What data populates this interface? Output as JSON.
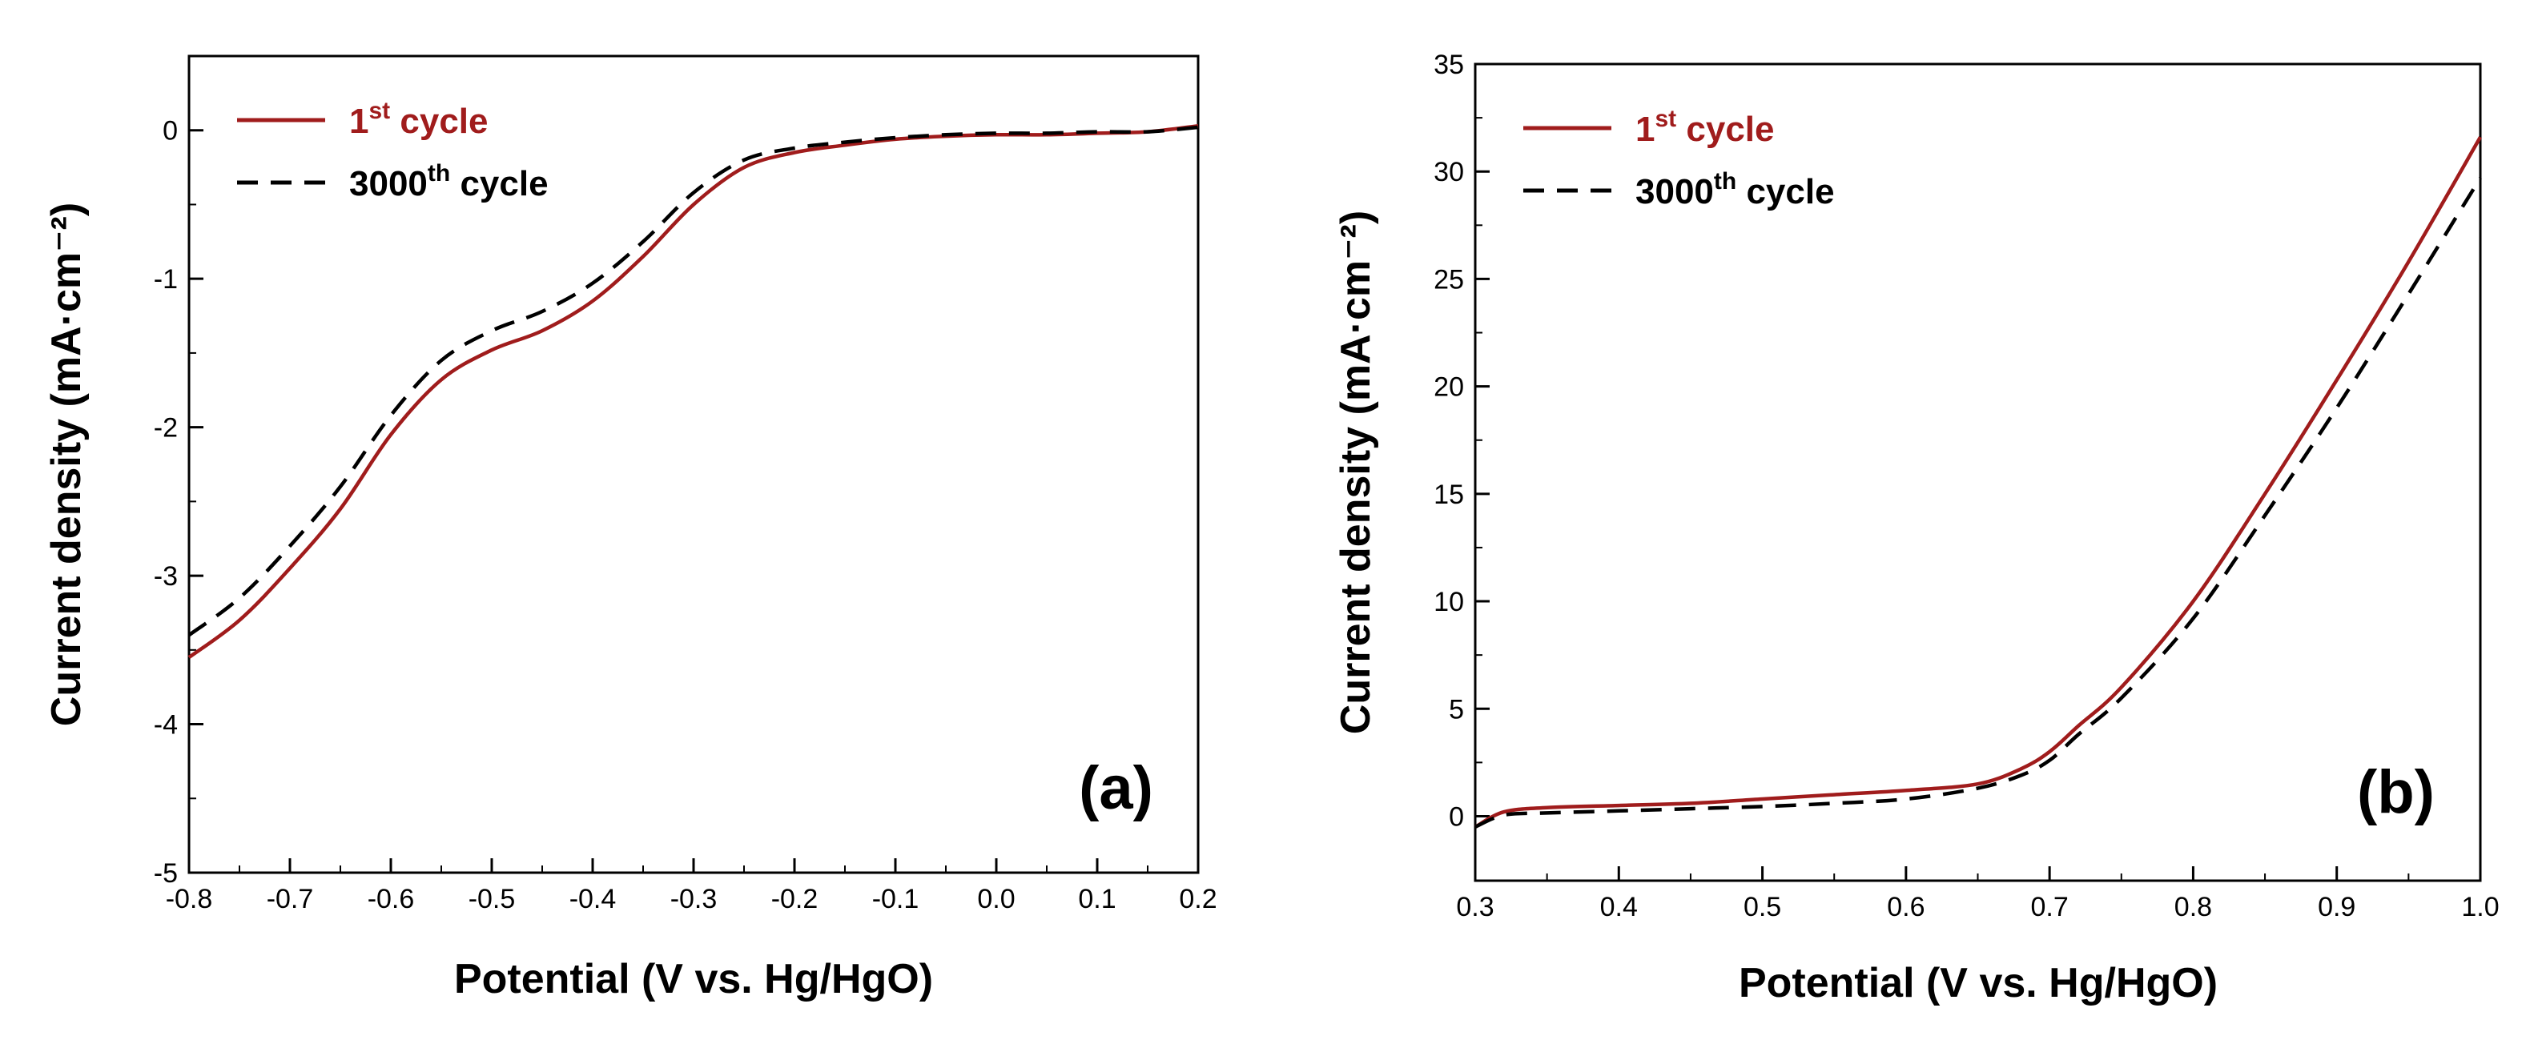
{
  "chart_data": [
    {
      "panel": "(a)",
      "type": "line",
      "xlabel": "Potential (V vs. Hg/HgO)",
      "ylabel": "Current density (mA·cm⁻²)",
      "xlim": [
        -0.8,
        0.2
      ],
      "ylim": [
        -5,
        0.5
      ],
      "xticks": [
        -0.8,
        -0.7,
        -0.6,
        -0.5,
        -0.4,
        -0.3,
        -0.2,
        -0.1,
        0.0,
        0.1,
        0.2
      ],
      "xtick_labels": [
        "-0.8",
        "-0.7",
        "-0.6",
        "-0.5",
        "-0.4",
        "-0.3",
        "-0.2",
        "-0.1",
        "0.0",
        "0.1",
        "0.2"
      ],
      "yticks": [
        0,
        -1,
        -2,
        -3,
        -4,
        -5
      ],
      "ytick_labels": [
        "0",
        "-1",
        "-2",
        "-3",
        "-4",
        "-5"
      ],
      "legend": {
        "position": "top-left"
      },
      "series": [
        {
          "name": "1st cycle",
          "label_main": "1",
          "label_sup": "st",
          "label_tail": " cycle",
          "color": "#a01c1c",
          "style": "solid",
          "x": [
            -0.8,
            -0.75,
            -0.7,
            -0.65,
            -0.6,
            -0.55,
            -0.5,
            -0.45,
            -0.4,
            -0.35,
            -0.3,
            -0.25,
            -0.2,
            -0.15,
            -0.1,
            -0.05,
            0.0,
            0.05,
            0.1,
            0.15,
            0.2
          ],
          "y": [
            -3.55,
            -3.3,
            -2.95,
            -2.55,
            -2.05,
            -1.68,
            -1.48,
            -1.35,
            -1.15,
            -0.85,
            -0.5,
            -0.25,
            -0.15,
            -0.1,
            -0.06,
            -0.04,
            -0.03,
            -0.03,
            -0.02,
            -0.01,
            0.03
          ]
        },
        {
          "name": "3000th cycle",
          "label_main": "3000",
          "label_sup": "th",
          "label_tail": " cycle",
          "color": "#000000",
          "style": "dashed",
          "x": [
            -0.8,
            -0.75,
            -0.7,
            -0.65,
            -0.6,
            -0.55,
            -0.5,
            -0.45,
            -0.4,
            -0.35,
            -0.3,
            -0.25,
            -0.2,
            -0.15,
            -0.1,
            -0.05,
            0.0,
            0.05,
            0.1,
            0.15,
            0.2
          ],
          "y": [
            -3.4,
            -3.15,
            -2.8,
            -2.4,
            -1.92,
            -1.55,
            -1.35,
            -1.22,
            -1.03,
            -0.75,
            -0.42,
            -0.2,
            -0.12,
            -0.08,
            -0.05,
            -0.03,
            -0.02,
            -0.02,
            -0.01,
            -0.01,
            0.02
          ]
        }
      ]
    },
    {
      "panel": "(b)",
      "type": "line",
      "xlabel": "Potential (V vs. Hg/HgO)",
      "ylabel": "Current density (mA·cm⁻²)",
      "xlim": [
        0.3,
        1.0
      ],
      "ylim": [
        -3,
        35
      ],
      "xticks": [
        0.3,
        0.4,
        0.5,
        0.6,
        0.7,
        0.8,
        0.9,
        1.0
      ],
      "xtick_labels": [
        "0.3",
        "0.4",
        "0.5",
        "0.6",
        "0.7",
        "0.8",
        "0.9",
        "1.0"
      ],
      "yticks": [
        0,
        5,
        10,
        15,
        20,
        25,
        30,
        35
      ],
      "ytick_labels": [
        "0",
        "5",
        "10",
        "15",
        "20",
        "25",
        "30",
        "35"
      ],
      "legend": {
        "position": "top-left"
      },
      "series": [
        {
          "name": "1st cycle",
          "label_main": "1",
          "label_sup": "st",
          "label_tail": " cycle",
          "color": "#a01c1c",
          "style": "solid",
          "x": [
            0.3,
            0.32,
            0.35,
            0.4,
            0.45,
            0.5,
            0.55,
            0.6,
            0.65,
            0.68,
            0.7,
            0.72,
            0.75,
            0.8,
            0.85,
            0.9,
            0.95,
            1.0
          ],
          "y": [
            -0.5,
            0.2,
            0.4,
            0.5,
            0.6,
            0.8,
            1.0,
            1.2,
            1.5,
            2.2,
            3.0,
            4.2,
            6.0,
            10.0,
            15.0,
            20.3,
            25.8,
            31.6
          ]
        },
        {
          "name": "3000th cycle",
          "label_main": "3000",
          "label_sup": "th",
          "label_tail": " cycle",
          "color": "#000000",
          "style": "dashed",
          "x": [
            0.3,
            0.32,
            0.35,
            0.4,
            0.45,
            0.5,
            0.55,
            0.6,
            0.65,
            0.68,
            0.7,
            0.72,
            0.75,
            0.8,
            0.85,
            0.9,
            0.95,
            1.0
          ],
          "y": [
            -0.5,
            0.05,
            0.15,
            0.25,
            0.35,
            0.45,
            0.6,
            0.8,
            1.3,
            1.9,
            2.6,
            3.8,
            5.5,
            9.2,
            14.0,
            19.0,
            24.3,
            29.7
          ]
        }
      ]
    }
  ]
}
